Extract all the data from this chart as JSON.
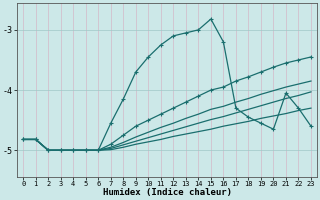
{
  "xlabel": "Humidex (Indice chaleur)",
  "bg_color": "#cce8e8",
  "line_color": "#1a6e6e",
  "xlim": [
    -0.5,
    23.5
  ],
  "ylim": [
    -5.45,
    -2.55
  ],
  "yticks": [
    -5,
    -4,
    -3
  ],
  "xticks": [
    0,
    1,
    2,
    3,
    4,
    5,
    6,
    7,
    8,
    9,
    10,
    11,
    12,
    13,
    14,
    15,
    16,
    17,
    18,
    19,
    20,
    21,
    22,
    23
  ],
  "lines": [
    {
      "x": [
        0,
        1,
        2,
        3,
        4,
        5,
        6,
        7,
        8,
        9,
        10,
        11,
        12,
        13,
        14,
        15,
        16,
        17,
        18,
        19,
        20,
        21,
        22,
        23
      ],
      "y": [
        -4.82,
        -4.82,
        -5.0,
        -5.0,
        -5.0,
        -5.0,
        -5.0,
        -4.55,
        -4.15,
        -3.7,
        -3.45,
        -3.25,
        -3.1,
        -3.05,
        -3.0,
        -2.82,
        -3.2,
        -4.3,
        -4.45,
        -4.55,
        -4.65,
        -4.05,
        -4.3,
        -4.6
      ],
      "marker": true
    },
    {
      "x": [
        0,
        1,
        2,
        3,
        4,
        5,
        6,
        7,
        8,
        9,
        10,
        11,
        12,
        13,
        14,
        15,
        16,
        17,
        18,
        19,
        20,
        21,
        22,
        23
      ],
      "y": [
        -4.82,
        -4.82,
        -5.0,
        -5.0,
        -5.0,
        -5.0,
        -5.0,
        -4.9,
        -4.75,
        -4.6,
        -4.5,
        -4.4,
        -4.3,
        -4.2,
        -4.1,
        -4.0,
        -3.95,
        -3.85,
        -3.78,
        -3.7,
        -3.62,
        -3.55,
        -3.5,
        -3.45
      ],
      "marker": true
    },
    {
      "x": [
        0,
        1,
        2,
        3,
        4,
        5,
        6,
        7,
        8,
        9,
        10,
        11,
        12,
        13,
        14,
        15,
        16,
        17,
        18,
        19,
        20,
        21,
        22,
        23
      ],
      "y": [
        -4.82,
        -4.82,
        -5.0,
        -5.0,
        -5.0,
        -5.0,
        -5.0,
        -4.95,
        -4.87,
        -4.78,
        -4.7,
        -4.62,
        -4.55,
        -4.47,
        -4.4,
        -4.32,
        -4.27,
        -4.2,
        -4.14,
        -4.07,
        -4.01,
        -3.95,
        -3.9,
        -3.85
      ],
      "marker": false
    },
    {
      "x": [
        0,
        1,
        2,
        3,
        4,
        5,
        6,
        7,
        8,
        9,
        10,
        11,
        12,
        13,
        14,
        15,
        16,
        17,
        18,
        19,
        20,
        21,
        22,
        23
      ],
      "y": [
        -4.82,
        -4.82,
        -5.0,
        -5.0,
        -5.0,
        -5.0,
        -5.0,
        -4.97,
        -4.91,
        -4.85,
        -4.79,
        -4.73,
        -4.67,
        -4.61,
        -4.55,
        -4.49,
        -4.44,
        -4.38,
        -4.32,
        -4.26,
        -4.2,
        -4.14,
        -4.09,
        -4.03
      ],
      "marker": false
    },
    {
      "x": [
        0,
        1,
        2,
        3,
        4,
        5,
        6,
        7,
        8,
        9,
        10,
        11,
        12,
        13,
        14,
        15,
        16,
        17,
        18,
        19,
        20,
        21,
        22,
        23
      ],
      "y": [
        -4.82,
        -4.82,
        -5.0,
        -5.0,
        -5.0,
        -5.0,
        -5.0,
        -4.99,
        -4.95,
        -4.9,
        -4.86,
        -4.82,
        -4.77,
        -4.73,
        -4.69,
        -4.65,
        -4.6,
        -4.56,
        -4.52,
        -4.47,
        -4.43,
        -4.39,
        -4.34,
        -4.3
      ],
      "marker": false
    }
  ]
}
